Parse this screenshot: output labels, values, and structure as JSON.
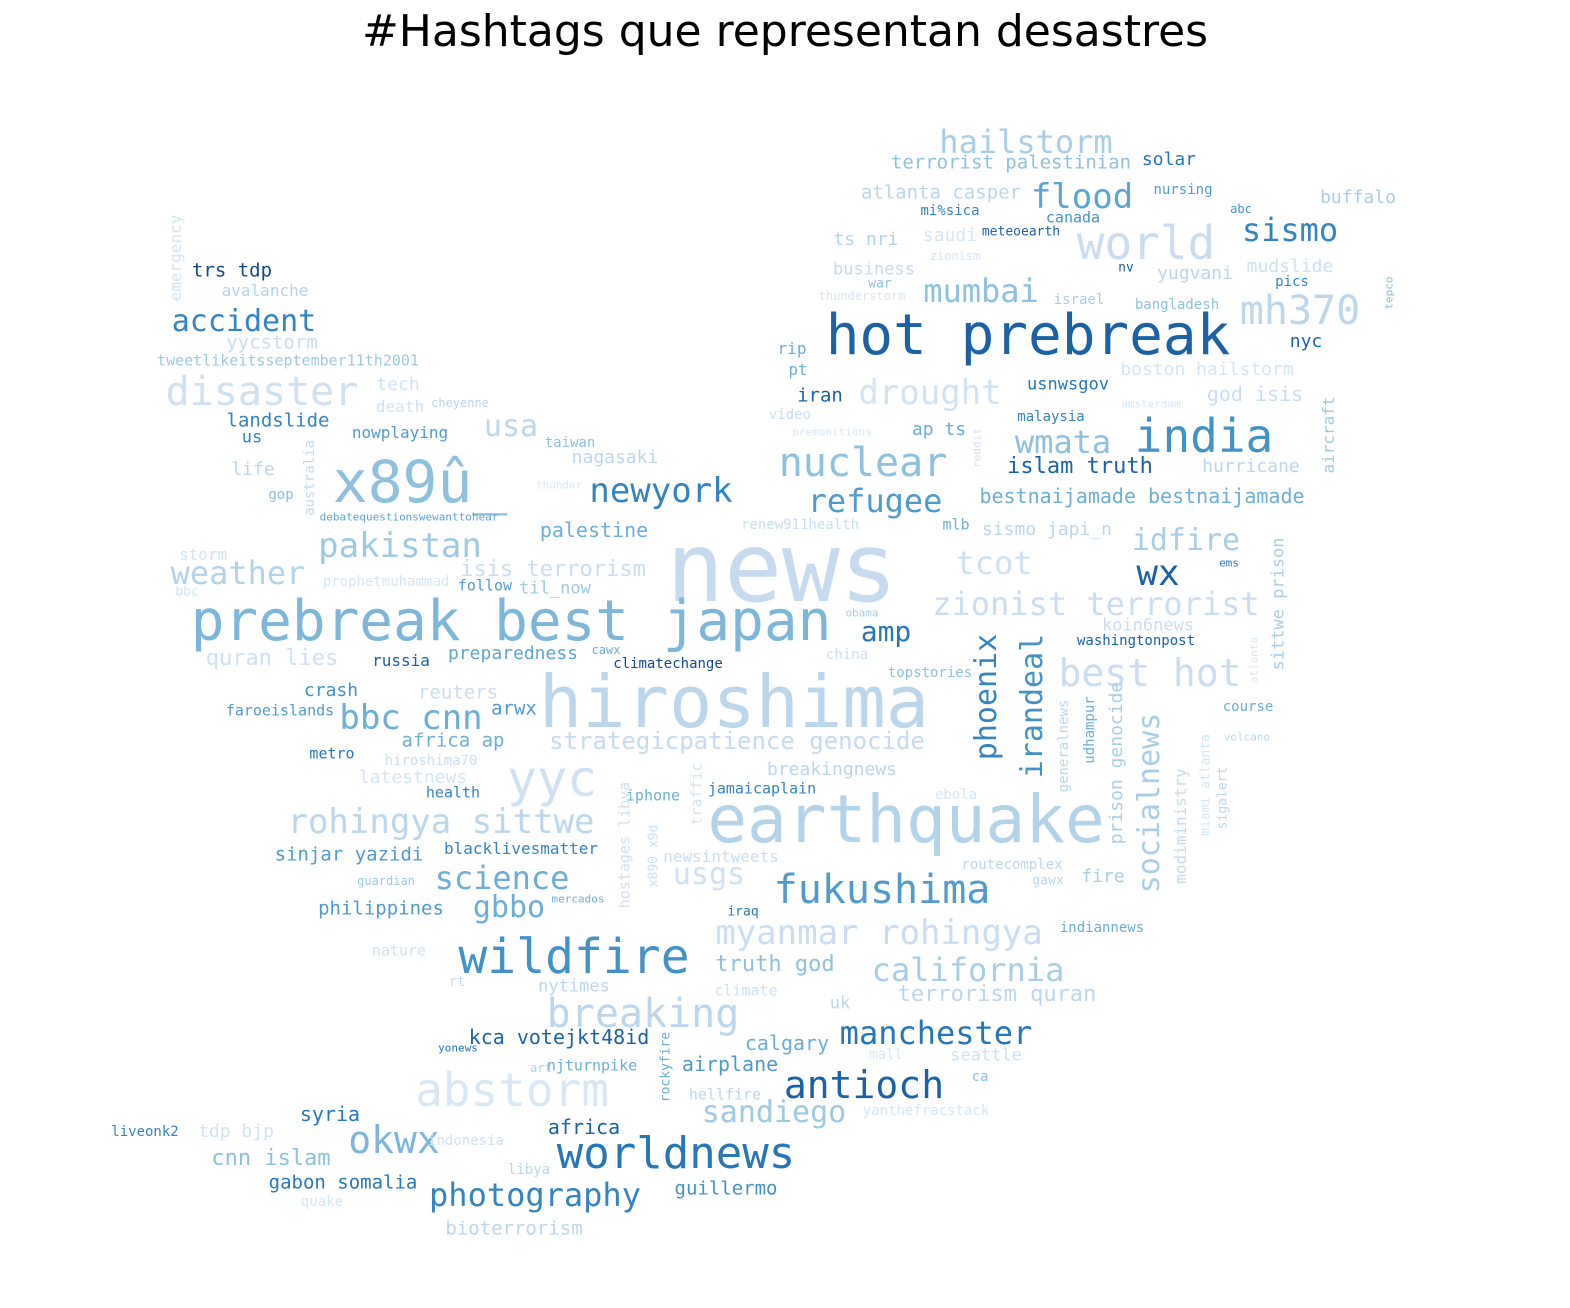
{
  "title": "#Hashtags que representan desastres",
  "colormap": "Blues",
  "words": [
    {
      "text": "news",
      "shade": 0.25
    },
    {
      "text": "hiroshima",
      "shade": 0.3
    },
    {
      "text": "earthquake",
      "shade": 0.35
    },
    {
      "text": "prebreak best japan",
      "shade": 0.55
    },
    {
      "text": "hot prebreak",
      "shade": 0.9
    },
    {
      "text": "x89û_",
      "shade": 0.5
    },
    {
      "text": "wildfire",
      "shade": 0.75
    },
    {
      "text": "worldnews",
      "shade": 0.85
    },
    {
      "text": "world",
      "shade": 0.2
    },
    {
      "text": "india",
      "shade": 0.75
    },
    {
      "text": "nuclear",
      "shade": 0.5
    },
    {
      "text": "fukushima",
      "shade": 0.7
    },
    {
      "text": "abstorm",
      "shade": 0.05
    },
    {
      "text": "antioch",
      "shade": 0.9
    },
    {
      "text": "breaking",
      "shade": 0.3
    },
    {
      "text": "mh370",
      "shade": 0.3
    },
    {
      "text": "disaster",
      "shade": 0.15
    },
    {
      "text": "yyc",
      "shade": 0.15
    },
    {
      "text": "newyork",
      "shade": 0.8
    },
    {
      "text": "okwx",
      "shade": 0.55
    },
    {
      "text": "pakistan",
      "shade": 0.45
    },
    {
      "text": "hailstorm",
      "shade": 0.4
    },
    {
      "text": "flood",
      "shade": 0.65
    },
    {
      "text": "mumbai",
      "shade": 0.5
    },
    {
      "text": "sismo",
      "shade": 0.8
    },
    {
      "text": "accident",
      "shade": 0.8
    },
    {
      "text": "rohingya sittwe",
      "shade": 0.3
    },
    {
      "text": "myanmar rohingya",
      "shade": 0.2
    },
    {
      "text": "bbc cnn",
      "shade": 0.6
    },
    {
      "text": "refugee",
      "shade": 0.7
    },
    {
      "text": "photography",
      "shade": 0.8
    },
    {
      "text": "manchester",
      "shade": 0.85
    },
    {
      "text": "california",
      "shade": 0.4
    },
    {
      "text": "sandiego",
      "shade": 0.45
    },
    {
      "text": "science",
      "shade": 0.6
    },
    {
      "text": "best hot",
      "shade": 0.2
    },
    {
      "text": "zionist terrorist",
      "shade": 0.2
    },
    {
      "text": "drought",
      "shade": 0.12
    },
    {
      "text": "weather",
      "shade": 0.35
    },
    {
      "text": "wmata",
      "shade": 0.5
    },
    {
      "text": "socialnews",
      "shade": 0.4
    },
    {
      "text": "irandeal",
      "shade": 0.75
    },
    {
      "text": "phoenix",
      "shade": 0.8
    },
    {
      "text": "idfire",
      "shade": 0.4
    },
    {
      "text": "wx",
      "shade": 0.9
    },
    {
      "text": "tcot",
      "shade": 0.15
    },
    {
      "text": "amp",
      "shade": 0.85
    },
    {
      "text": "gbbo",
      "shade": 0.6
    },
    {
      "text": "usa",
      "shade": 0.3
    },
    {
      "text": "strategicpatience genocide",
      "shade": 0.25
    },
    {
      "text": "bestnaijamade bestnaijamade",
      "shade": 0.6
    },
    {
      "text": "islam truth",
      "shade": 0.9
    },
    {
      "text": "isis terrorism",
      "shade": 0.2
    },
    {
      "text": "quran lies",
      "shade": 0.15
    },
    {
      "text": "usgs",
      "shade": 0.15
    },
    {
      "text": "terrorism quran",
      "shade": 0.3
    },
    {
      "text": "truth god",
      "shade": 0.5
    },
    {
      "text": "kca votejkt48id",
      "shade": 0.9
    },
    {
      "text": "cnn islam",
      "shade": 0.5
    },
    {
      "text": "gabon somalia",
      "shade": 0.85
    },
    {
      "text": "africa",
      "shade": 0.9
    },
    {
      "text": "syria",
      "shade": 0.85
    },
    {
      "text": "guillermo",
      "shade": 0.75
    },
    {
      "text": "bioterrorism",
      "shade": 0.3
    },
    {
      "text": "airplane",
      "shade": 0.7
    },
    {
      "text": "calgary",
      "shade": 0.6
    },
    {
      "text": "sinjar yazidi",
      "shade": 0.7
    },
    {
      "text": "blacklivesmatter",
      "shade": 0.8
    },
    {
      "text": "philippines",
      "shade": 0.7
    },
    {
      "text": "africa ap",
      "shade": 0.6
    },
    {
      "text": "arwx",
      "shade": 0.7
    },
    {
      "text": "crash",
      "shade": 0.75
    },
    {
      "text": "reuters",
      "shade": 0.2
    },
    {
      "text": "faroeislands",
      "shade": 0.7
    },
    {
      "text": "metro",
      "shade": 0.85
    },
    {
      "text": "hiroshima70",
      "shade": 0.2
    },
    {
      "text": "latestnews",
      "shade": 0.1
    },
    {
      "text": "health",
      "shade": 0.8
    },
    {
      "text": "iphone",
      "shade": 0.6
    },
    {
      "text": "jamaicaplain",
      "shade": 0.8
    },
    {
      "text": "breakingnews",
      "shade": 0.3
    },
    {
      "text": "preparedness",
      "shade": 0.65
    },
    {
      "text": "russia",
      "shade": 0.9
    },
    {
      "text": "palestine",
      "shade": 0.6
    },
    {
      "text": "follow",
      "shade": 0.7
    },
    {
      "text": "til_now",
      "shade": 0.45
    },
    {
      "text": "nagasaki",
      "shade": 0.3
    },
    {
      "text": "taiwan",
      "shade": 0.5
    },
    {
      "text": "nowplaying",
      "shade": 0.7
    },
    {
      "text": "landslide",
      "shade": 0.8
    },
    {
      "text": "us",
      "shade": 0.8
    },
    {
      "text": "life",
      "shade": 0.3
    },
    {
      "text": "gop",
      "shade": 0.5
    },
    {
      "text": "australia",
      "shade": 0.25
    },
    {
      "text": "debatequestionswewanttohear",
      "shade": 0.65
    },
    {
      "text": "storm",
      "shade": 0.12
    },
    {
      "text": "bbc",
      "shade": 0.12
    },
    {
      "text": "prophetmuhammad",
      "shade": 0.08
    },
    {
      "text": "tech",
      "shade": 0.12
    },
    {
      "text": "death",
      "shade": 0.12
    },
    {
      "text": "cheyenne",
      "shade": 0.3
    },
    {
      "text": "tweetlikeitsseptember11th2001",
      "shade": 0.45
    },
    {
      "text": "yycstorm",
      "shade": 0.2
    },
    {
      "text": "avalanche",
      "shade": 0.35
    },
    {
      "text": "trs tdp",
      "shade": 0.95
    },
    {
      "text": "emergency",
      "shade": 0.1
    },
    {
      "text": "terrorist palestinian",
      "shade": 0.5
    },
    {
      "text": "solar",
      "shade": 0.85
    },
    {
      "text": "atlanta casper",
      "shade": 0.3
    },
    {
      "text": "nursing",
      "shade": 0.7
    },
    {
      "text": "abc",
      "shade": 0.75
    },
    {
      "text": "buffalo",
      "shade": 0.4
    },
    {
      "text": "mi%sica",
      "shade": 0.8
    },
    {
      "text": "canada",
      "shade": 0.75
    },
    {
      "text": "meteoearth",
      "shade": 0.9
    },
    {
      "text": "saudi",
      "shade": 0.08
    },
    {
      "text": "zionism",
      "shade": 0.1
    },
    {
      "text": "ts nri",
      "shade": 0.35
    },
    {
      "text": "business",
      "shade": 0.25
    },
    {
      "text": "war",
      "shade": 0.5
    },
    {
      "text": "thunderstorm",
      "shade": 0.08
    },
    {
      "text": "nv",
      "shade": 0.9
    },
    {
      "text": "yugvani",
      "shade": 0.3
    },
    {
      "text": "mudslide",
      "shade": 0.15
    },
    {
      "text": "pics",
      "shade": 0.8
    },
    {
      "text": "israel",
      "shade": 0.4
    },
    {
      "text": "bangladesh",
      "shade": 0.5
    },
    {
      "text": "tepco",
      "shade": 0.5
    },
    {
      "text": "nyc",
      "shade": 0.9
    },
    {
      "text": "rip",
      "shade": 0.6
    },
    {
      "text": "pt",
      "shade": 0.6
    },
    {
      "text": "iran",
      "shade": 0.9
    },
    {
      "text": "boston hailstorm",
      "shade": 0.08
    },
    {
      "text": "usnwsgov",
      "shade": 0.85
    },
    {
      "text": "god isis",
      "shade": 0.2
    },
    {
      "text": "amsterdam",
      "shade": 0.08
    },
    {
      "text": "aircraft",
      "shade": 0.45
    },
    {
      "text": "video",
      "shade": 0.2
    },
    {
      "text": "premonitions",
      "shade": 0.08
    },
    {
      "text": "ap ts",
      "shade": 0.6
    },
    {
      "text": "malaysia",
      "shade": 0.8
    },
    {
      "text": "reddit",
      "shade": 0.15
    },
    {
      "text": "hurricane",
      "shade": 0.3
    },
    {
      "text": "thunder",
      "shade": 0.06
    },
    {
      "text": "renew911health",
      "shade": 0.2
    },
    {
      "text": "mlb",
      "shade": 0.6
    },
    {
      "text": "sismo japi_n",
      "shade": 0.3
    },
    {
      "text": "sittwe prison",
      "shade": 0.4
    },
    {
      "text": "ems",
      "shade": 0.85
    },
    {
      "text": "koin6news",
      "shade": 0.2
    },
    {
      "text": "washingtonpost",
      "shade": 0.9
    },
    {
      "text": "obama",
      "shade": 0.4
    },
    {
      "text": "china",
      "shade": 0.2
    },
    {
      "text": "topstories",
      "shade": 0.5
    },
    {
      "text": "climatechange",
      "shade": 0.95
    },
    {
      "text": "cawx",
      "shade": 0.6
    },
    {
      "text": "generalnews",
      "shade": 0.3
    },
    {
      "text": "udhampur",
      "shade": 0.6
    },
    {
      "text": "prison genocide",
      "shade": 0.4
    },
    {
      "text": "modiministry",
      "shade": 0.25
    },
    {
      "text": "miami atlanta",
      "shade": 0.1
    },
    {
      "text": "sigalert",
      "shade": 0.3
    },
    {
      "text": "course",
      "shade": 0.6
    },
    {
      "text": "volcano",
      "shade": 0.3
    },
    {
      "text": "atlanta",
      "shade": 0.08
    },
    {
      "text": "routecomplex",
      "shade": 0.3
    },
    {
      "text": "gawx",
      "shade": 0.3
    },
    {
      "text": "fire",
      "shade": 0.4
    },
    {
      "text": "ebola",
      "shade": 0.08
    },
    {
      "text": "indiannews",
      "shade": 0.6
    },
    {
      "text": "newsintweets",
      "shade": 0.2
    },
    {
      "text": "hostages libya",
      "shade": 0.15
    },
    {
      "text": "traffic",
      "shade": 0.1
    },
    {
      "text": "x890 x9d",
      "shade": 0.15
    },
    {
      "text": "guardian",
      "shade": 0.45
    },
    {
      "text": "mercados",
      "shade": 0.6
    },
    {
      "text": "iraq",
      "shade": 0.85
    },
    {
      "text": "nature",
      "shade": 0.15
    },
    {
      "text": "rt",
      "shade": 0.2
    },
    {
      "text": "nytimes",
      "shade": 0.3
    },
    {
      "text": "climate",
      "shade": 0.15
    },
    {
      "text": "uk",
      "shade": 0.3
    },
    {
      "text": "seattle",
      "shade": 0.15
    },
    {
      "text": "yonews",
      "shade": 0.85
    },
    {
      "text": "art",
      "shade": 0.35
    },
    {
      "text": "njturnpike",
      "shade": 0.6
    },
    {
      "text": "rockyfire",
      "shade": 0.6
    },
    {
      "text": "hellfire",
      "shade": 0.3
    },
    {
      "text": "ca",
      "shade": 0.5
    },
    {
      "text": "mall",
      "shade": 0.06
    },
    {
      "text": "yanthefracstack",
      "shade": 0.08
    },
    {
      "text": "liveonk2",
      "shade": 0.8
    },
    {
      "text": "tdp bjp",
      "shade": 0.12
    },
    {
      "text": "indonesia",
      "shade": 0.12
    },
    {
      "text": "libya",
      "shade": 0.3
    },
    {
      "text": "quake",
      "shade": 0.08
    }
  ]
}
